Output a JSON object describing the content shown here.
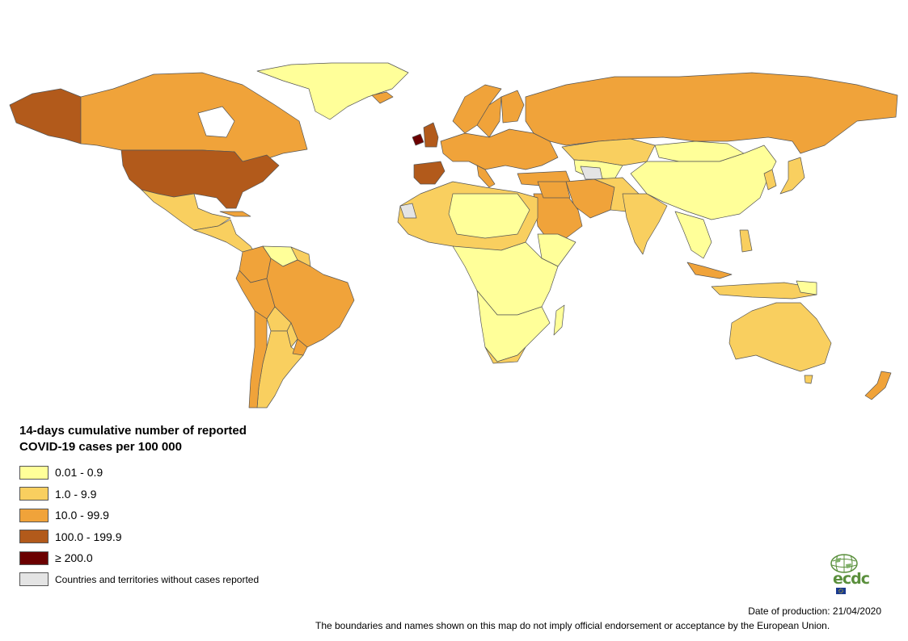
{
  "colors": {
    "c1": "#ffff99",
    "c2": "#f9cf5f",
    "c3": "#f0a33a",
    "c4": "#b25a1b",
    "c5": "#6b0000",
    "none": "#e4e4e4"
  },
  "legend": {
    "title": "14-days cumulative number of reported COVID-19 cases per 100 000",
    "items": [
      {
        "label": "0.01 - 0.9",
        "color": "#ffff99"
      },
      {
        "label": "1.0 - 9.9",
        "color": "#f9cf5f"
      },
      {
        "label": "10.0 - 99.9",
        "color": "#f0a33a"
      },
      {
        "label": "100.0 - 199.9",
        "color": "#b25a1b"
      },
      {
        "label": "≥ 200.0",
        "color": "#6b0000"
      },
      {
        "label": "Countries and territories without cases reported",
        "color": "#e4e4e4"
      }
    ]
  },
  "logo": {
    "text": "ecdc"
  },
  "footer": {
    "date": "Date of production: 21/04/2020",
    "disclaimer": "The boundaries and names shown on this map do not imply official endorsement or acceptance by the European Union."
  }
}
